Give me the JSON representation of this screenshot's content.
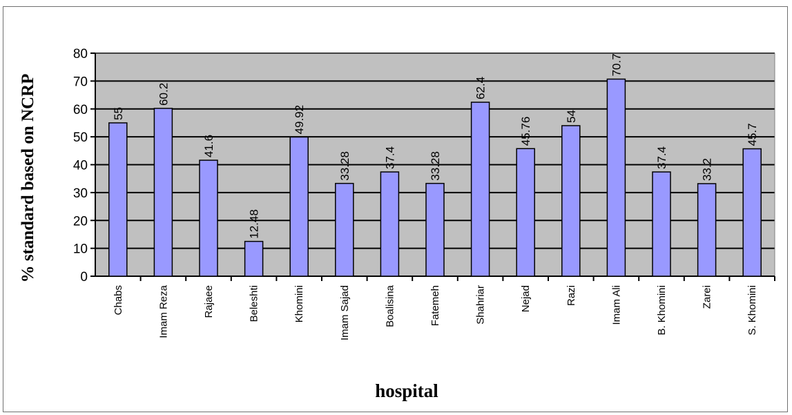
{
  "chart_data": {
    "type": "bar",
    "title": "",
    "xlabel": "hospital",
    "ylabel": "% standard based on NCRP",
    "categories": [
      "Chabs",
      "Imam Reza",
      "Rajaee",
      "Beleshti",
      "Khomini",
      "Imam Sajad",
      "Boalisina",
      "Fatemeh",
      "Shahriar",
      "Nejad",
      "Razi",
      "Imam Ali",
      "B. Khomini",
      "Zarei",
      "S. Khomini"
    ],
    "values": [
      55,
      60.2,
      41.6,
      12.48,
      49.92,
      33.28,
      37.4,
      33.28,
      62.4,
      45.76,
      54,
      70.7,
      37.4,
      33.2,
      45.7
    ],
    "data_labels": [
      "55",
      "60.2",
      "41.6",
      "12.48",
      "49.92",
      "33.28",
      "37.4",
      "33.28",
      "62.4",
      "45.76",
      "54",
      "70.7",
      "37.4",
      "33.2",
      "45.7"
    ],
    "yticks": [
      0,
      10,
      20,
      30,
      40,
      50,
      60,
      70,
      80
    ],
    "ylim": [
      0,
      80
    ],
    "grid": true,
    "legend": "none",
    "colors": {
      "bar_fill": "#9999ff",
      "bar_stroke": "#000000",
      "plot_background": "#c0c0c0",
      "gridline": "#000000"
    }
  }
}
